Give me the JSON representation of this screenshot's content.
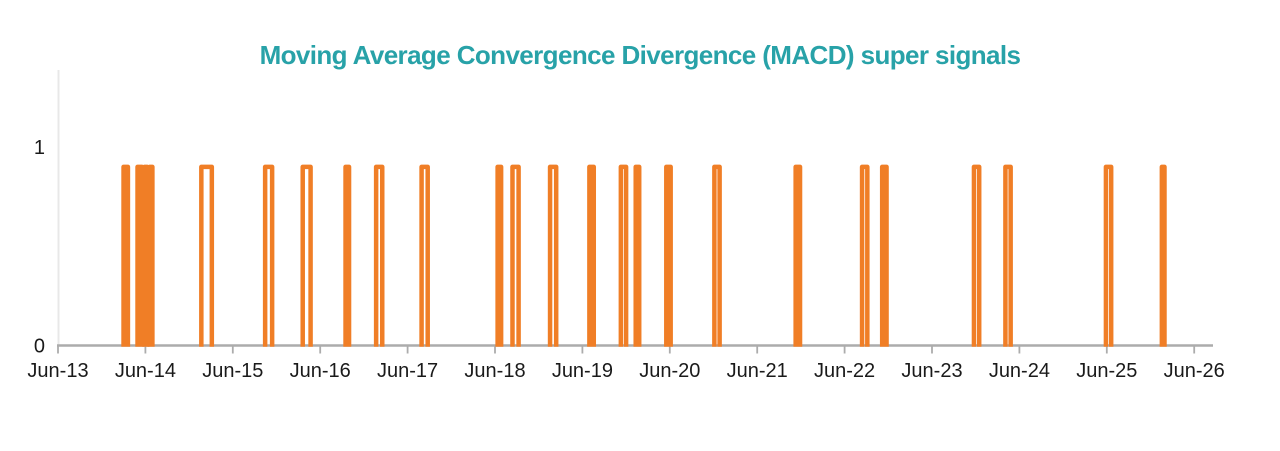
{
  "chart_data": {
    "type": "line",
    "subtype": "binary-signal-pulses",
    "title": "Moving Average Convergence Divergence (MACD) super signals",
    "series_name": "MACD super signals",
    "xlabel": "",
    "ylabel": "",
    "x_tick_labels": [
      "Jun-13",
      "Jun-14",
      "Jun-15",
      "Jun-16",
      "Jun-17",
      "Jun-18",
      "Jun-19",
      "Jun-20",
      "Jun-21",
      "Jun-22",
      "Jun-23",
      "Jun-24",
      "Jun-25",
      "Jun-26"
    ],
    "x_tick_values": [
      13,
      14,
      15,
      16,
      17,
      18,
      19,
      20,
      21,
      22,
      23,
      24,
      25,
      26
    ],
    "y_tick_labels": [
      "0",
      "1"
    ],
    "y_tick_values": [
      0,
      1
    ],
    "xlim": [
      13,
      26.25
    ],
    "ylim": [
      0,
      1.4
    ],
    "grid": false,
    "legend_position": "none",
    "signal_low_value": 0,
    "signal_high_value": 0.9,
    "pulses": [
      {
        "start": 13.75,
        "end": 13.8
      },
      {
        "start": 13.91,
        "end": 13.96
      },
      {
        "start": 13.99,
        "end": 14.02
      },
      {
        "start": 14.05,
        "end": 14.08
      },
      {
        "start": 14.64,
        "end": 14.76
      },
      {
        "start": 15.37,
        "end": 15.45
      },
      {
        "start": 15.8,
        "end": 15.89
      },
      {
        "start": 16.29,
        "end": 16.33
      },
      {
        "start": 16.64,
        "end": 16.71
      },
      {
        "start": 17.16,
        "end": 17.23
      },
      {
        "start": 18.03,
        "end": 18.07
      },
      {
        "start": 18.2,
        "end": 18.27
      },
      {
        "start": 18.63,
        "end": 18.7
      },
      {
        "start": 19.08,
        "end": 19.13
      },
      {
        "start": 19.44,
        "end": 19.5
      },
      {
        "start": 19.61,
        "end": 19.65
      },
      {
        "start": 19.96,
        "end": 20.01
      },
      {
        "start": 20.51,
        "end": 20.57
      },
      {
        "start": 21.44,
        "end": 21.49
      },
      {
        "start": 22.2,
        "end": 22.26
      },
      {
        "start": 22.43,
        "end": 22.48
      },
      {
        "start": 23.48,
        "end": 23.54
      },
      {
        "start": 23.84,
        "end": 23.9
      },
      {
        "start": 24.99,
        "end": 25.05
      },
      {
        "start": 25.63,
        "end": 25.66
      }
    ],
    "colors": {
      "signal": "#F07E26",
      "title": "#28A2A8",
      "x_axis_line": "#ACACAC",
      "y_axis_line": "#E8E8E8",
      "tick_mark": "#ACACAC",
      "tick_label": "#1A1A1A",
      "background": "#FFFFFF"
    }
  }
}
